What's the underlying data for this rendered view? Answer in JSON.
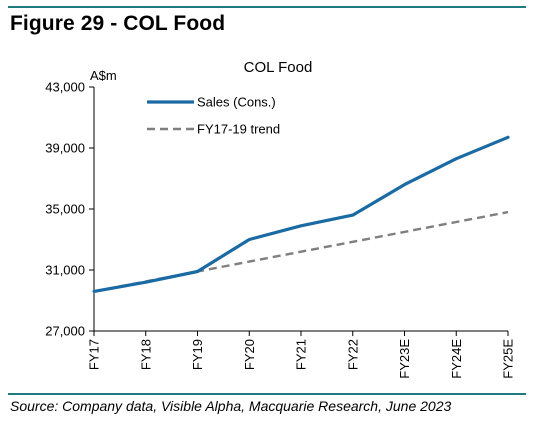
{
  "figure": {
    "title": "Figure 29 - COL Food",
    "source": "Source: Company data, Visible Alpha, Macquarie Research, June 2023"
  },
  "chart_data": {
    "type": "line",
    "title": "COL Food",
    "ylabel": "A$m",
    "xlabel": "",
    "categories": [
      "FY17",
      "FY18",
      "FY19",
      "FY20",
      "FY21",
      "FY22",
      "FY23E",
      "FY24E",
      "FY25E"
    ],
    "ylim": [
      27000,
      43000
    ],
    "yticks": [
      27000,
      31000,
      35000,
      39000,
      43000
    ],
    "ytick_labels": [
      "27,000",
      "31,000",
      "35,000",
      "39,000",
      "43,000"
    ],
    "grid": false,
    "legend_position": "top-left",
    "series": [
      {
        "name": "Sales (Cons.)",
        "style": "solid",
        "color": "#1a6aa3",
        "values": [
          29600,
          30200,
          30900,
          33000,
          33900,
          34600,
          36600,
          38300,
          39700
        ]
      },
      {
        "name": "FY17-19 trend",
        "style": "dashed",
        "color": "#7f7f7f",
        "values": [
          29600,
          30250,
          30900,
          31550,
          32200,
          32850,
          33500,
          34150,
          34800
        ]
      }
    ]
  }
}
